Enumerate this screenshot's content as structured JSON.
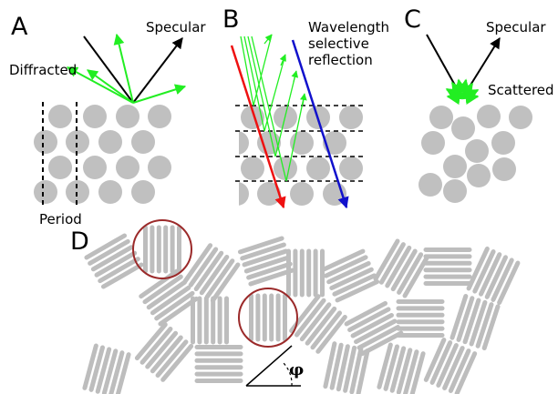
{
  "panels": {
    "a": {
      "letter": "A",
      "label_diffracted": "Diffracted",
      "label_specular": "Specular",
      "label_period": "Period"
    },
    "b": {
      "letter": "B",
      "label_line1": "Wavelength",
      "label_line2": "selective",
      "label_line3": "reflection"
    },
    "c": {
      "letter": "C",
      "label_specular": "Specular",
      "label_scattered": "Scattered"
    },
    "d": {
      "letter": "D",
      "angle_symbol": "φ"
    }
  },
  "colors": {
    "sphere": "#c0c0c0",
    "rod": "#bdbdbd",
    "green_ray": "#22ee22",
    "red_ray": "#ee1111",
    "blue_ray": "#1111cc",
    "highlight_circle": "#9b2a2a",
    "black": "#000000"
  }
}
